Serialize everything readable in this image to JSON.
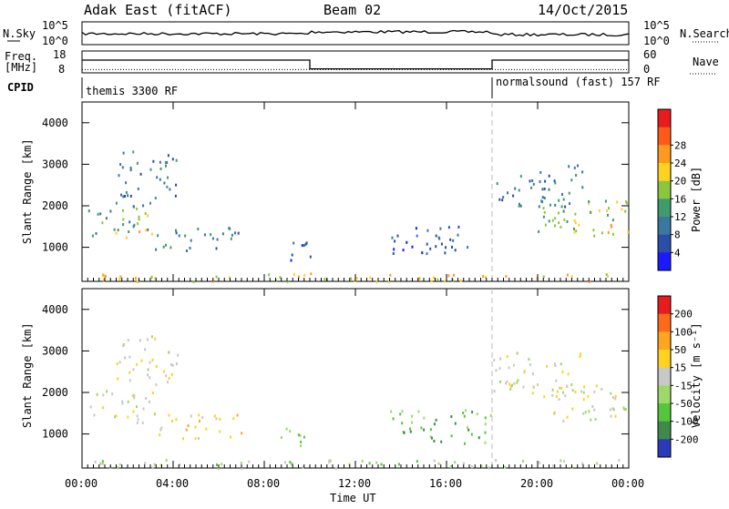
{
  "header": {
    "title": "Adak East (fitACF)",
    "beam": "Beam 02",
    "date": "14/Oct/2015"
  },
  "status_panels": {
    "nsky_label": "N.Sky",
    "nsearch_label": "N.Search",
    "freq_label_1": "Freq.",
    "freq_label_2": "[MHz]",
    "nave_label": "Nave",
    "cpid_label": "CPID",
    "noise_ticks_left": [
      "10^5",
      "10^0"
    ],
    "noise_ticks_right": [
      "10^5",
      "10^0"
    ],
    "freq_ticks_left": [
      "18",
      "8"
    ],
    "nave_ticks_right": [
      "60",
      "0"
    ],
    "cpid_programs": [
      {
        "name": "themis 3300 RF",
        "start_hour": 0,
        "end_hour": 18
      },
      {
        "name": "normalsound (fast) 157 RF",
        "start_hour": 18,
        "end_hour": 24
      }
    ],
    "frequency_segments_mhz": [
      {
        "start_hour": 0,
        "end_hour": 10,
        "value": 15.5
      },
      {
        "start_hour": 10,
        "end_hour": 18,
        "value": 9.5
      },
      {
        "start_hour": 18,
        "end_hour": 24,
        "value": 15.5
      }
    ],
    "nave_level": 10
  },
  "chart_data": [
    {
      "type": "heatmap",
      "title": "",
      "xlabel": "Time UT",
      "ylabel": "Slant Range [km]",
      "xlim": [
        0,
        24
      ],
      "ylim": [
        180,
        4500
      ],
      "x_ticks": [
        "00:00",
        "04:00",
        "08:00",
        "12:00",
        "16:00",
        "20:00",
        "00:00"
      ],
      "y_ticks": [
        "1000",
        "2000",
        "3000",
        "4000"
      ],
      "y_tick_values": [
        1000,
        2000,
        3000,
        4000
      ],
      "colorbar": {
        "label": "Power [dB]",
        "ticks": [
          "4",
          "8",
          "12",
          "16",
          "20",
          "24",
          "28"
        ],
        "colors": [
          "#1a1aff",
          "#2b4fa8",
          "#3a78a0",
          "#3f9a6e",
          "#8cc63f",
          "#ffd21f",
          "#ff9a1f",
          "#ff5a1a",
          "#e81c1c"
        ]
      },
      "scatter_regions": [
        {
          "t0": 0.2,
          "t1": 3.0,
          "r0": 1300,
          "r1": 2100,
          "level": 3
        },
        {
          "t0": 1.0,
          "t1": 3.2,
          "r0": 1250,
          "r1": 1450,
          "level": 6
        },
        {
          "t0": 2.4,
          "t1": 3.2,
          "r0": 1600,
          "r1": 2000,
          "level": 4
        },
        {
          "t0": 3.2,
          "t1": 7.0,
          "r0": 900,
          "r1": 1500,
          "level": 2
        },
        {
          "t0": 1.5,
          "t1": 4.2,
          "r0": 2200,
          "r1": 3400,
          "level": 2
        },
        {
          "t0": 8.5,
          "t1": 10.0,
          "r0": 700,
          "r1": 1200,
          "level": 1
        },
        {
          "t0": 13.5,
          "t1": 17.0,
          "r0": 800,
          "r1": 1600,
          "level": 1
        },
        {
          "t0": 18.0,
          "t1": 22.0,
          "r0": 2000,
          "r1": 3000,
          "level": 2
        },
        {
          "t0": 20.0,
          "t1": 24.0,
          "r0": 1300,
          "r1": 2200,
          "level": 4
        },
        {
          "t0": 21.5,
          "t1": 24.0,
          "r0": 1350,
          "r1": 1650,
          "level": 5
        },
        {
          "t0": 0.0,
          "t1": 24.0,
          "r0": 200,
          "r1": 400,
          "level": 5
        }
      ]
    },
    {
      "type": "heatmap",
      "title": "",
      "xlabel": "Time UT",
      "ylabel": "Slant Range [km]",
      "xlim": [
        0,
        24
      ],
      "ylim": [
        180,
        4500
      ],
      "x_ticks": [
        "00:00",
        "04:00",
        "08:00",
        "12:00",
        "16:00",
        "20:00",
        "00:00"
      ],
      "y_ticks": [
        "1000",
        "2000",
        "3000",
        "4000"
      ],
      "y_tick_values": [
        1000,
        2000,
        3000,
        4000
      ],
      "colorbar": {
        "label": "Velocity [m s⁻¹]",
        "ticks": [
          "200",
          "100",
          "50",
          "15",
          "-15",
          "-50",
          "-100",
          "-200"
        ],
        "colors": [
          "#2a3ab8",
          "#3f8a4a",
          "#55c53c",
          "#9fd86a",
          "#c8c8c8",
          "#ffd21f",
          "#ffa51f",
          "#ff6a1a",
          "#e81c1c"
        ]
      },
      "scatter_regions": [
        {
          "t0": 0.2,
          "t1": 3.2,
          "r0": 1300,
          "r1": 2100,
          "level": 4
        },
        {
          "t0": 3.2,
          "t1": 7.0,
          "r0": 900,
          "r1": 1500,
          "level": 5
        },
        {
          "t0": 1.5,
          "t1": 4.2,
          "r0": 2200,
          "r1": 3400,
          "level": 4
        },
        {
          "t0": 8.5,
          "t1": 10.0,
          "r0": 700,
          "r1": 1200,
          "level": 2
        },
        {
          "t0": 13.5,
          "t1": 18.0,
          "r0": 800,
          "r1": 1600,
          "level": 2
        },
        {
          "t0": 18.0,
          "t1": 22.0,
          "r0": 2000,
          "r1": 3000,
          "level": 4
        },
        {
          "t0": 20.0,
          "t1": 24.0,
          "r0": 1300,
          "r1": 2200,
          "level": 4
        },
        {
          "t0": 0.0,
          "t1": 24.0,
          "r0": 200,
          "r1": 400,
          "level": 3
        }
      ]
    }
  ]
}
